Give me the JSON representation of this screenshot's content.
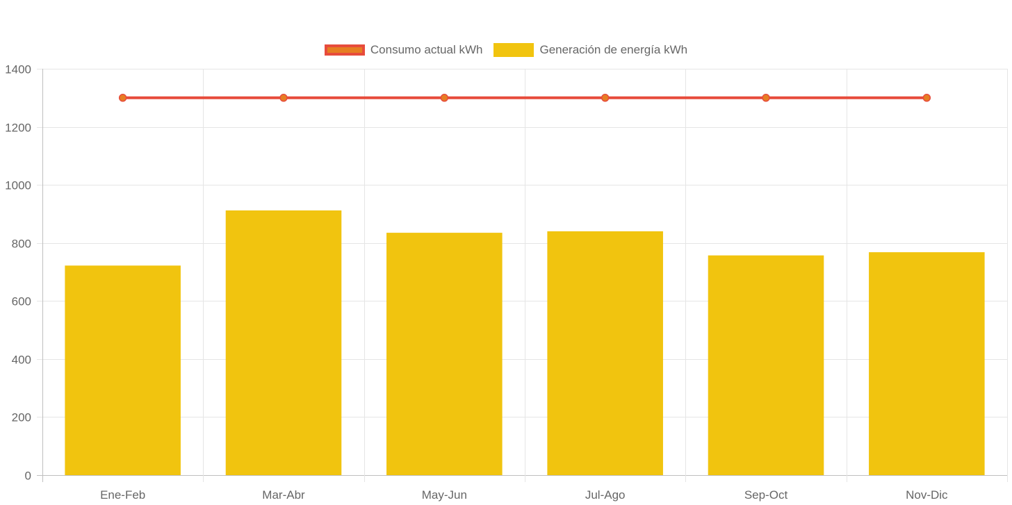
{
  "chart_data": {
    "type": "bar",
    "categories": [
      "Ene-Feb",
      "Mar-Abr",
      "May-Jun",
      "Jul-Ago",
      "Sep-Oct",
      "Nov-Dic"
    ],
    "series": [
      {
        "name": "Consumo actual kWh",
        "type": "line",
        "values": [
          1300,
          1300,
          1300,
          1300,
          1300,
          1300
        ],
        "color": "#e74c3c",
        "point_color": "#e67e22"
      },
      {
        "name": "Generación de energía kWh",
        "type": "bar",
        "values": [
          722,
          912,
          835,
          840,
          757,
          768
        ],
        "color": "#f1c40f"
      }
    ],
    "ylim": [
      0,
      1400
    ],
    "yticks": [
      0,
      200,
      400,
      600,
      800,
      1000,
      1200,
      1400
    ],
    "grid": true,
    "legend_position": "top-center"
  }
}
